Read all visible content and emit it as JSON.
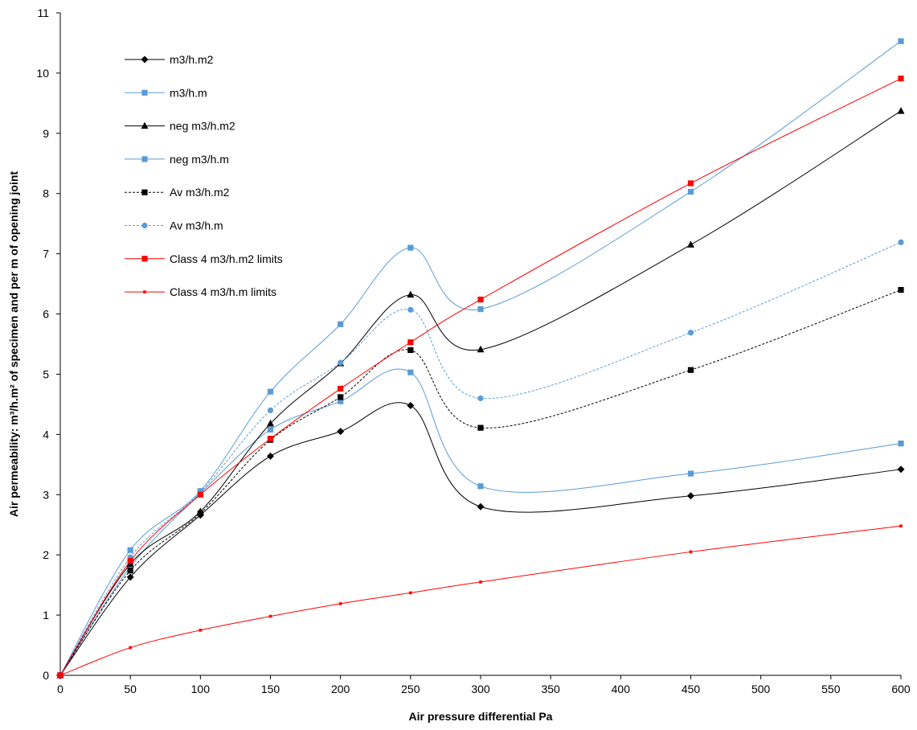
{
  "chart_data": {
    "type": "line",
    "xlabel": "Air pressure differential Pa",
    "ylabel": "Air permeability: m³/h.m² of specimen and per m of opening joint",
    "xlim": [
      0,
      600
    ],
    "ylim": [
      0,
      11
    ],
    "x_ticks": [
      "0",
      "50",
      "100",
      "150",
      "200",
      "250",
      "300",
      "350",
      "400",
      "450",
      "500",
      "550",
      "600"
    ],
    "y_ticks": [
      "0",
      "1",
      "2",
      "3",
      "4",
      "5",
      "6",
      "7",
      "8",
      "9",
      "10",
      "11"
    ],
    "grid": false,
    "legend_position": "top-left",
    "x": [
      0,
      50,
      100,
      150,
      200,
      250,
      300,
      450,
      600
    ],
    "series": [
      {
        "name": "m3/h.m2",
        "color": "#000000",
        "marker": "diamond",
        "dash": "solid",
        "values": [
          0,
          1.63,
          2.66,
          3.64,
          4.05,
          4.48,
          2.8,
          2.98,
          3.42
        ]
      },
      {
        "name": "m3/h.m",
        "color": "#5b9bd5",
        "marker": "square",
        "dash": "solid",
        "values": [
          0,
          1.8,
          3.02,
          4.08,
          4.55,
          5.03,
          3.14,
          3.35,
          3.85
        ]
      },
      {
        "name": "neg m3/h.m2",
        "color": "#000000",
        "marker": "triangle",
        "dash": "solid",
        "values": [
          0,
          1.85,
          2.72,
          4.18,
          5.18,
          6.32,
          5.41,
          7.15,
          9.37
        ]
      },
      {
        "name": "neg m3/h.m",
        "color": "#5b9bd5",
        "marker": "square",
        "dash": "solid",
        "values": [
          0,
          2.08,
          3.06,
          4.71,
          5.83,
          7.1,
          6.08,
          8.03,
          10.53
        ]
      },
      {
        "name": "Av m3/h.m2",
        "color": "#000000",
        "marker": "square",
        "dash": "dashed",
        "values": [
          0,
          1.74,
          2.69,
          3.91,
          4.62,
          5.4,
          4.11,
          5.07,
          6.4
        ]
      },
      {
        "name": "Av m3/h.m",
        "color": "#5b9bd5",
        "marker": "circle",
        "dash": "dashed",
        "values": [
          0,
          1.96,
          3.04,
          4.4,
          5.19,
          6.07,
          4.6,
          5.69,
          7.19
        ]
      },
      {
        "name": "Class 4 m3/h.m2 limits",
        "color": "#ff0000",
        "marker": "square",
        "dash": "solid",
        "values": [
          0,
          1.9,
          3.0,
          3.93,
          4.76,
          5.53,
          6.24,
          8.17,
          9.91
        ]
      },
      {
        "name": "Class 4 m3/h.m limits",
        "color": "#ff0000",
        "marker": "small-square",
        "dash": "solid",
        "values": [
          0,
          0.46,
          0.75,
          0.98,
          1.19,
          1.37,
          1.55,
          2.05,
          2.48
        ]
      }
    ]
  }
}
